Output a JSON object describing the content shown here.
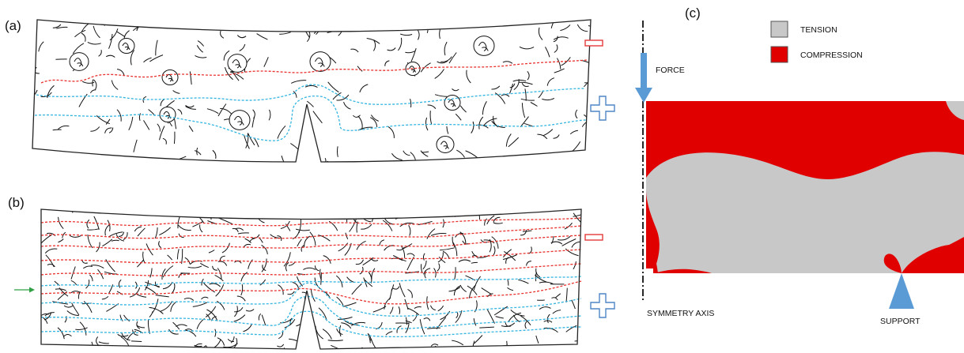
{
  "panels": {
    "a": {
      "label": "(a)"
    },
    "b": {
      "label": "(b)"
    },
    "c": {
      "label": "(c)"
    }
  },
  "legend": [
    {
      "label": "TENSION",
      "color": "#c8c8c8"
    },
    {
      "label": "COMPRESSION",
      "color": "#e10000"
    }
  ],
  "annotations": {
    "force": "FORCE",
    "symmetry_axis": "SYMMETRY AXIS",
    "support": "SUPPORT"
  },
  "colors": {
    "compression_zone": "#e10000",
    "tension_zone": "#c8c8c8",
    "compression_crack_line": "#e8322e",
    "tension_crack_line": "#33b5e0",
    "arrow_blue": "#5b9bd5",
    "minus_sign": "#e33a3a",
    "plus_sign": "#4f86c6",
    "green_arrow": "#2ea043"
  },
  "symbols": {
    "minus": "minus-sign",
    "plus": "plus-sign"
  }
}
